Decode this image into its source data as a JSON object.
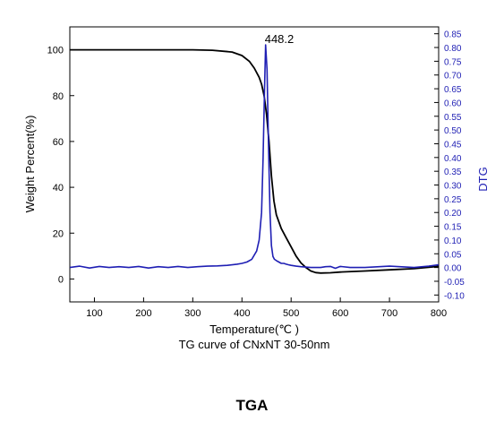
{
  "figure_caption": "TGA",
  "chart_data": {
    "type": "line",
    "title": "",
    "subtitle": "TG curve of CNxNT 30-50nm",
    "xlabel": "Temperature(℃ )",
    "ylabel": "Weight Percent(%)",
    "y2label": "DTG",
    "xlim": [
      50,
      800
    ],
    "ylim": [
      -10,
      110
    ],
    "y2lim": [
      -0.125,
      0.875
    ],
    "x_ticks": [
      "100",
      "200",
      "300",
      "400",
      "500",
      "600",
      "700",
      "800"
    ],
    "y_ticks": [
      "0",
      "20",
      "40",
      "60",
      "80",
      "100"
    ],
    "y2_ticks": [
      "-0.10",
      "-0.05",
      "0.00",
      "0.05",
      "0.10",
      "0.15",
      "0.20",
      "0.25",
      "0.30",
      "0.35",
      "0.40",
      "0.45",
      "0.50",
      "0.55",
      "0.60",
      "0.65",
      "0.70",
      "0.75",
      "0.80",
      "0.85"
    ],
    "grid": false,
    "annotations": [
      {
        "text": "448.2",
        "x": 448.2,
        "y2": 0.81
      }
    ],
    "colors": {
      "tg": "#000000",
      "dtg": "#1f1fb4",
      "right_axis": "#1f1fb4"
    },
    "series": [
      {
        "axis": "left",
        "x": [
          50,
          100,
          200,
          300,
          340,
          380,
          400,
          415,
          425,
          435,
          440,
          445,
          450,
          455,
          460,
          465,
          470,
          480,
          490,
          500,
          510,
          520,
          530,
          540,
          550,
          560,
          580,
          600,
          650,
          700,
          750,
          800
        ],
        "values": [
          100,
          100,
          100,
          100,
          99.8,
          99,
          97.5,
          95,
          92,
          88,
          85,
          80,
          72,
          60,
          45,
          34,
          28,
          22,
          18,
          14,
          10,
          7,
          5,
          3.5,
          2.8,
          2.6,
          2.7,
          3,
          3.5,
          4,
          4.5,
          5.5
        ]
      },
      {
        "axis": "right",
        "x": [
          50,
          70,
          90,
          110,
          130,
          150,
          170,
          190,
          210,
          230,
          250,
          270,
          290,
          310,
          330,
          350,
          370,
          390,
          400,
          410,
          420,
          430,
          435,
          440,
          443,
          446,
          448.2,
          451,
          454,
          457,
          460,
          463,
          466,
          470,
          475,
          480,
          485,
          490,
          495,
          500,
          510,
          520,
          540,
          560,
          570,
          580,
          590,
          600,
          620,
          650,
          700,
          750,
          780,
          800
        ],
        "values": [
          0.0,
          0.005,
          -0.002,
          0.004,
          0.0,
          0.003,
          0.0,
          0.004,
          -0.002,
          0.003,
          0.0,
          0.004,
          0.0,
          0.003,
          0.005,
          0.006,
          0.008,
          0.012,
          0.015,
          0.02,
          0.03,
          0.06,
          0.1,
          0.2,
          0.4,
          0.65,
          0.81,
          0.72,
          0.45,
          0.2,
          0.08,
          0.04,
          0.03,
          0.025,
          0.02,
          0.015,
          0.015,
          0.012,
          0.01,
          0.008,
          0.005,
          0.003,
          0.0,
          0.0,
          0.003,
          0.004,
          -0.003,
          0.004,
          0.0,
          0.0,
          0.005,
          0.0,
          0.005,
          0.01
        ]
      }
    ]
  }
}
